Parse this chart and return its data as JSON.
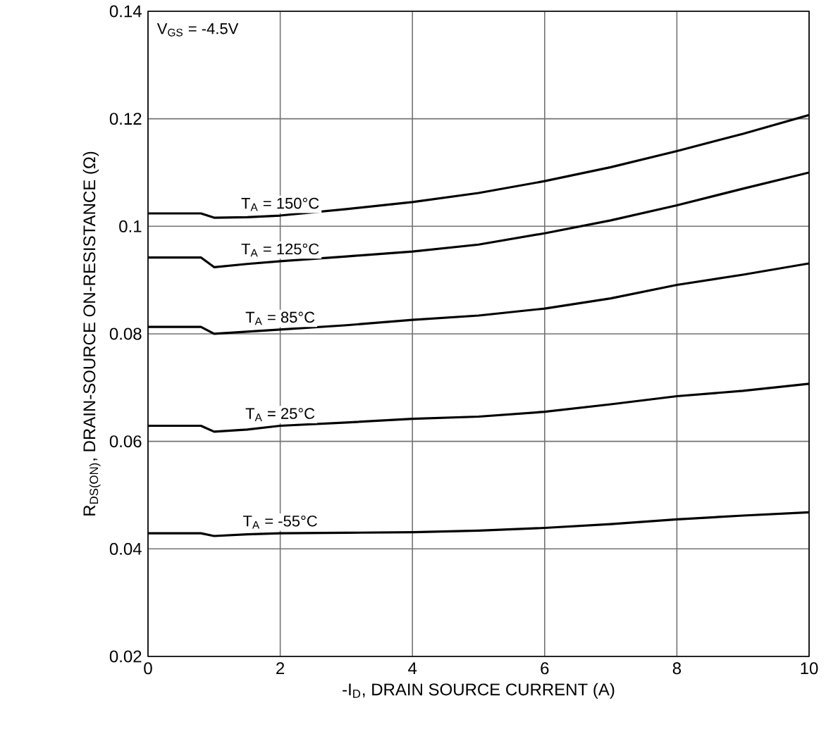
{
  "chart_data": {
    "type": "line",
    "xlabel": "-I$_{D}$, DRAIN SOURCE CURRENT (A)",
    "ylabel": "R$_{DS(ON)}$, DRAIN-SOURCE ON-RESISTANCE (Ω)",
    "annotations": [
      "V$_{GS}$ = -4.5V"
    ],
    "x": [
      0,
      0.8,
      1.0,
      1.5,
      2,
      3,
      4,
      5,
      6,
      7,
      8,
      9,
      10
    ],
    "series": [
      {
        "name": "T$_{A}$ = 150°C",
        "color": "#000000",
        "values": [
          0.1024,
          0.1024,
          0.1016,
          0.1017,
          0.102,
          0.1032,
          0.1045,
          0.1062,
          0.1084,
          0.111,
          0.114,
          0.1172,
          0.1207
        ]
      },
      {
        "name": "T$_{A}$ = 125°C",
        "color": "#000000",
        "values": [
          0.0942,
          0.0942,
          0.0924,
          0.093,
          0.0935,
          0.0944,
          0.0953,
          0.0966,
          0.0987,
          0.1011,
          0.1039,
          0.107,
          0.11
        ]
      },
      {
        "name": "T$_{A}$ = 85°C",
        "color": "#000000",
        "values": [
          0.0813,
          0.0813,
          0.08,
          0.0804,
          0.0808,
          0.0816,
          0.0826,
          0.0834,
          0.0847,
          0.0866,
          0.0891,
          0.091,
          0.0931
        ]
      },
      {
        "name": "T$_{A}$ = 25°C",
        "color": "#000000",
        "values": [
          0.0629,
          0.0629,
          0.0618,
          0.0622,
          0.0629,
          0.0635,
          0.0642,
          0.0646,
          0.0655,
          0.0669,
          0.0684,
          0.0694,
          0.0707
        ]
      },
      {
        "name": "T$_{A}$ = -55°C",
        "color": "#000000",
        "values": [
          0.0429,
          0.0429,
          0.0424,
          0.0427,
          0.0429,
          0.043,
          0.0431,
          0.0434,
          0.0439,
          0.0446,
          0.0455,
          0.0462,
          0.0468
        ]
      }
    ],
    "xlim": [
      0,
      10
    ],
    "xticks": [
      0,
      2,
      4,
      6,
      8,
      10
    ],
    "ylim": [
      0.02,
      0.14
    ],
    "yticks": [
      0.02,
      0.04,
      0.06,
      0.08,
      0.1,
      0.12,
      0.14
    ],
    "grid": true,
    "legend": false,
    "marker": "none",
    "line_style": "solid"
  }
}
